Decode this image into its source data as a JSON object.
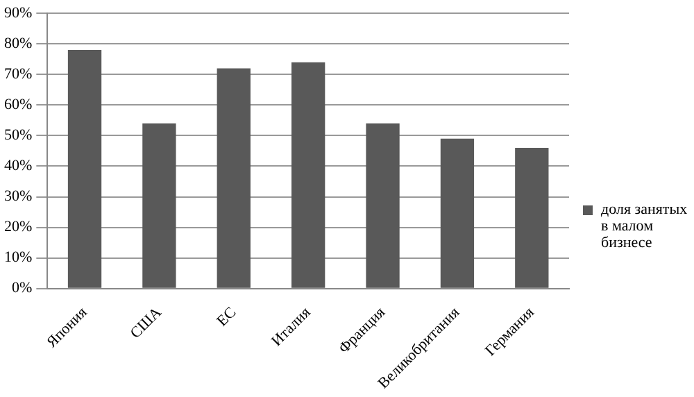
{
  "chart_data": {
    "type": "bar",
    "categories": [
      "Япония",
      "США",
      "ЕС",
      "Италия",
      "Франция",
      "Великобритания",
      "Германия"
    ],
    "series": [
      {
        "name": "доля занятых в малом бизнесе",
        "color": "#595959",
        "values": [
          78,
          54,
          72,
          74,
          54,
          49,
          46
        ]
      }
    ],
    "ylim": [
      0,
      90
    ],
    "yticks": [
      {
        "value": 0,
        "label": "0%"
      },
      {
        "value": 10,
        "label": "10%"
      },
      {
        "value": 20,
        "label": "20%"
      },
      {
        "value": 30,
        "label": "30%"
      },
      {
        "value": 40,
        "label": "40%"
      },
      {
        "value": 50,
        "label": "50%"
      },
      {
        "value": 60,
        "label": "60%"
      },
      {
        "value": 70,
        "label": "70%"
      },
      {
        "value": 80,
        "label": "80%"
      },
      {
        "value": 90,
        "label": "90%"
      }
    ],
    "grid": "y",
    "legend": "right"
  }
}
